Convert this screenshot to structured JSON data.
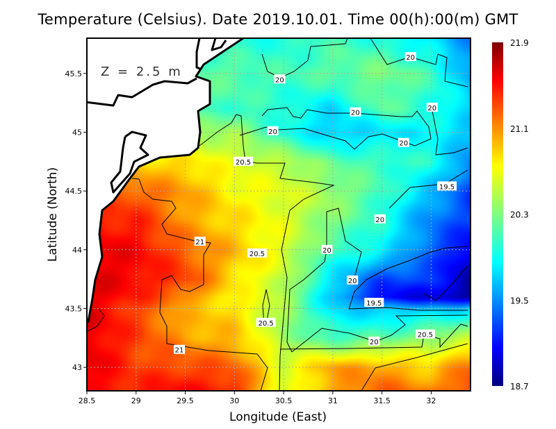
{
  "chart_data": {
    "type": "heatmap",
    "title": "Temperature (Celsius). Date 2019.10.01. Time 00(h):00(m) GMT",
    "annotation": "Z = 2.5 m",
    "xlabel": "Longitude (East)",
    "ylabel": "Latitude (North)",
    "xlim": [
      28.5,
      32.4
    ],
    "ylim": [
      42.8,
      45.8
    ],
    "xticks": [
      "28.5",
      "29",
      "29.5",
      "30",
      "30.5",
      "31",
      "31.5",
      "32"
    ],
    "yticks": [
      "43",
      "43.5",
      "44",
      "44.5",
      "45",
      "45.5"
    ],
    "grid": true,
    "colorbar": {
      "min": 18.7,
      "max": 21.9,
      "ticks": [
        "18.7",
        "19.5",
        "20.3",
        "21.1",
        "21.9"
      ],
      "colormap": "jet"
    },
    "grid_lon": [
      28.5,
      29,
      29.5,
      30,
      30.5,
      31,
      31.5,
      32,
      32.4
    ],
    "grid_lat": [
      45.8,
      45.5,
      45.2,
      45.0,
      44.75,
      44.5,
      44.25,
      44.0,
      43.75,
      43.6,
      43.5,
      43.25,
      43.0,
      42.8
    ],
    "values": [
      [
        null,
        null,
        null,
        null,
        20.0,
        20.1,
        20.0,
        19.8,
        19.5
      ],
      [
        null,
        null,
        null,
        20.2,
        20.1,
        20.2,
        20.3,
        20.1,
        19.6
      ],
      [
        null,
        null,
        null,
        20.1,
        20.0,
        19.8,
        20.2,
        20.0,
        19.8
      ],
      [
        null,
        null,
        null,
        20.4,
        20.0,
        19.7,
        19.8,
        19.9,
        19.7
      ],
      [
        null,
        null,
        20.8,
        20.6,
        20.5,
        20.2,
        20.1,
        20.0,
        19.5
      ],
      [
        null,
        21.2,
        21.0,
        20.7,
        20.6,
        20.4,
        20.1,
        19.7,
        19.3
      ],
      [
        21.4,
        21.4,
        21.0,
        20.8,
        20.6,
        20.3,
        20.0,
        19.5,
        19.3
      ],
      [
        21.6,
        21.5,
        21.2,
        20.9,
        20.6,
        20.1,
        19.9,
        19.4,
        19.0
      ],
      [
        21.6,
        21.5,
        21.3,
        20.8,
        20.5,
        19.8,
        19.3,
        19.3,
        18.8
      ],
      [
        21.6,
        21.4,
        21.1,
        20.7,
        20.5,
        19.7,
        19.1,
        19.0,
        18.8
      ],
      [
        21.6,
        21.3,
        20.9,
        20.8,
        20.4,
        19.8,
        19.7,
        19.7,
        19.8
      ],
      [
        21.6,
        21.3,
        21.0,
        20.9,
        20.4,
        20.1,
        20.2,
        20.4,
        20.5
      ],
      [
        21.6,
        21.3,
        21.3,
        21.2,
        20.6,
        21.0,
        21.0,
        20.8,
        21.2
      ],
      [
        21.5,
        21.4,
        21.5,
        21.4,
        20.5,
        21.0,
        21.2,
        21.1,
        21.3
      ]
    ],
    "contour_labels": [
      {
        "text": "20",
        "lon": 31.79,
        "lat": 45.64
      },
      {
        "text": "20",
        "lon": 30.46,
        "lat": 45.45
      },
      {
        "text": "20",
        "lon": 31.23,
        "lat": 45.17
      },
      {
        "text": "20",
        "lon": 32.01,
        "lat": 45.21
      },
      {
        "text": "20",
        "lon": 30.39,
        "lat": 45.01
      },
      {
        "text": "20",
        "lon": 31.72,
        "lat": 44.91
      },
      {
        "text": "20.5",
        "lon": 30.09,
        "lat": 44.75
      },
      {
        "text": "19.5",
        "lon": 32.16,
        "lat": 44.54
      },
      {
        "text": "20",
        "lon": 31.48,
        "lat": 44.26
      },
      {
        "text": "21",
        "lon": 29.65,
        "lat": 44.07
      },
      {
        "text": "20.5",
        "lon": 30.23,
        "lat": 43.97
      },
      {
        "text": "20",
        "lon": 30.94,
        "lat": 44.0
      },
      {
        "text": "20",
        "lon": 31.2,
        "lat": 43.74
      },
      {
        "text": "19.5",
        "lon": 31.42,
        "lat": 43.55
      },
      {
        "text": "20.5",
        "lon": 30.32,
        "lat": 43.38
      },
      {
        "text": "20",
        "lon": 31.42,
        "lat": 43.22
      },
      {
        "text": "20.5",
        "lon": 31.94,
        "lat": 43.28
      },
      {
        "text": "21",
        "lon": 29.44,
        "lat": 43.15
      }
    ]
  }
}
